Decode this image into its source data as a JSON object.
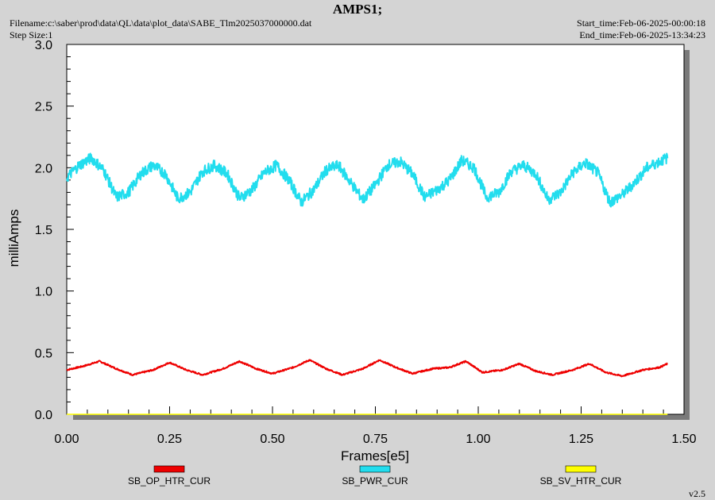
{
  "header": {
    "title": "AMPS1;",
    "filename": "Filename:c:\\saber\\prod\\data\\QL\\data\\plot_data\\SABE_Tlm2025037000000.dat",
    "step_size": "Step Size:1",
    "start_time": "Start_time:Feb-06-2025-00:00:18",
    "end_time": "End_time:Feb-06-2025-13:34:23",
    "version": "v2.5"
  },
  "chart_data": {
    "type": "line",
    "title": "AMPS1;",
    "xlabel": "Frames[e5]",
    "ylabel": "milliAmps",
    "xlim": [
      0,
      1.5
    ],
    "ylim": [
      0,
      3.0
    ],
    "x_ticks": [
      "0.00",
      "0.25",
      "0.50",
      "0.75",
      "1.00",
      "1.25",
      "1.50"
    ],
    "y_ticks": [
      "0.0",
      "0.5",
      "1.0",
      "1.5",
      "2.0",
      "2.5",
      "3.0"
    ],
    "x_tick_values": [
      0,
      0.25,
      0.5,
      0.75,
      1.0,
      1.25,
      1.5
    ],
    "y_tick_values": [
      0,
      0.5,
      1.0,
      1.5,
      2.0,
      2.5,
      3.0
    ],
    "grid": false,
    "legend_placement": "bottom",
    "series": [
      {
        "name": "SB_OP_HTR_CUR",
        "color": "#ee0000",
        "x": [
          0.0,
          0.04,
          0.08,
          0.12,
          0.16,
          0.21,
          0.25,
          0.29,
          0.33,
          0.38,
          0.42,
          0.46,
          0.5,
          0.55,
          0.59,
          0.63,
          0.67,
          0.72,
          0.76,
          0.8,
          0.84,
          0.89,
          0.93,
          0.97,
          1.01,
          1.06,
          1.1,
          1.14,
          1.18,
          1.23,
          1.27,
          1.31,
          1.35,
          1.4,
          1.44,
          1.46
        ],
        "y": [
          0.36,
          0.39,
          0.43,
          0.37,
          0.32,
          0.36,
          0.42,
          0.36,
          0.32,
          0.37,
          0.43,
          0.37,
          0.33,
          0.38,
          0.44,
          0.37,
          0.32,
          0.37,
          0.44,
          0.38,
          0.33,
          0.37,
          0.38,
          0.43,
          0.34,
          0.36,
          0.41,
          0.35,
          0.32,
          0.36,
          0.41,
          0.34,
          0.31,
          0.36,
          0.38,
          0.41
        ]
      },
      {
        "name": "SB_PWR_CUR",
        "color": "#22ddee",
        "x": [
          0.0,
          0.03,
          0.06,
          0.09,
          0.12,
          0.15,
          0.18,
          0.21,
          0.24,
          0.27,
          0.3,
          0.33,
          0.36,
          0.39,
          0.42,
          0.45,
          0.48,
          0.51,
          0.54,
          0.57,
          0.6,
          0.63,
          0.66,
          0.69,
          0.72,
          0.75,
          0.78,
          0.81,
          0.84,
          0.87,
          0.9,
          0.93,
          0.96,
          0.99,
          1.02,
          1.05,
          1.08,
          1.11,
          1.14,
          1.17,
          1.2,
          1.23,
          1.26,
          1.29,
          1.32,
          1.35,
          1.38,
          1.41,
          1.44,
          1.46
        ],
        "y": [
          1.92,
          2.02,
          2.08,
          1.98,
          1.76,
          1.8,
          1.95,
          2.02,
          1.95,
          1.75,
          1.8,
          1.97,
          2.02,
          1.95,
          1.75,
          1.82,
          1.96,
          2.02,
          1.9,
          1.72,
          1.82,
          1.98,
          2.02,
          1.88,
          1.74,
          1.86,
          2.02,
          2.05,
          1.95,
          1.76,
          1.82,
          1.9,
          2.06,
          2.0,
          1.76,
          1.8,
          1.97,
          2.02,
          1.95,
          1.74,
          1.8,
          1.96,
          2.04,
          1.96,
          1.72,
          1.78,
          1.88,
          2.0,
          2.05,
          2.08
        ]
      },
      {
        "name": "SB_SV_HTR_CUR",
        "color": "#ffff00",
        "x": [
          0.0,
          1.46
        ],
        "y": [
          0.0,
          0.0
        ]
      }
    ]
  }
}
